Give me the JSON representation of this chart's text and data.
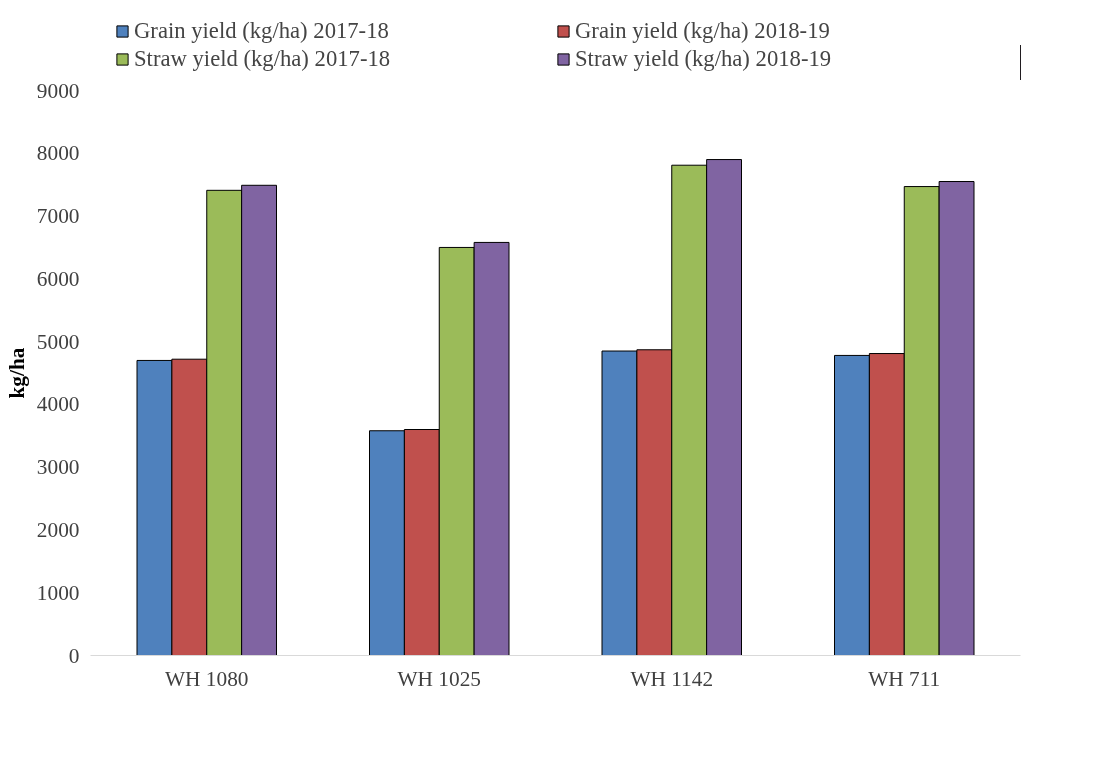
{
  "chart_data": {
    "type": "bar",
    "ylabel": "kg/ha",
    "categories": [
      "WH 1080",
      "WH 1025",
      "WH 1142",
      "WH 711"
    ],
    "series": [
      {
        "name": "Grain yield (kg/ha) 2017-18",
        "color": "#4f81bd",
        "values": [
          4700,
          3580,
          4850,
          4780
        ]
      },
      {
        "name": "Grain yield (kg/ha) 2018-19",
        "color": "#c0504d",
        "values": [
          4720,
          3600,
          4870,
          4810
        ]
      },
      {
        "name": "Straw yield (kg/ha) 2017-18",
        "color": "#9bbb59",
        "values": [
          7410,
          6500,
          7810,
          7470
        ]
      },
      {
        "name": "Straw yield (kg/ha) 2018-19",
        "color": "#8064a2",
        "values": [
          7490,
          6580,
          7900,
          7550
        ]
      }
    ],
    "ylim": [
      0,
      9000
    ],
    "yticks": [
      0,
      1000,
      2000,
      3000,
      4000,
      5000,
      6000,
      7000,
      8000,
      9000
    ],
    "grid": false,
    "legend": "top"
  }
}
